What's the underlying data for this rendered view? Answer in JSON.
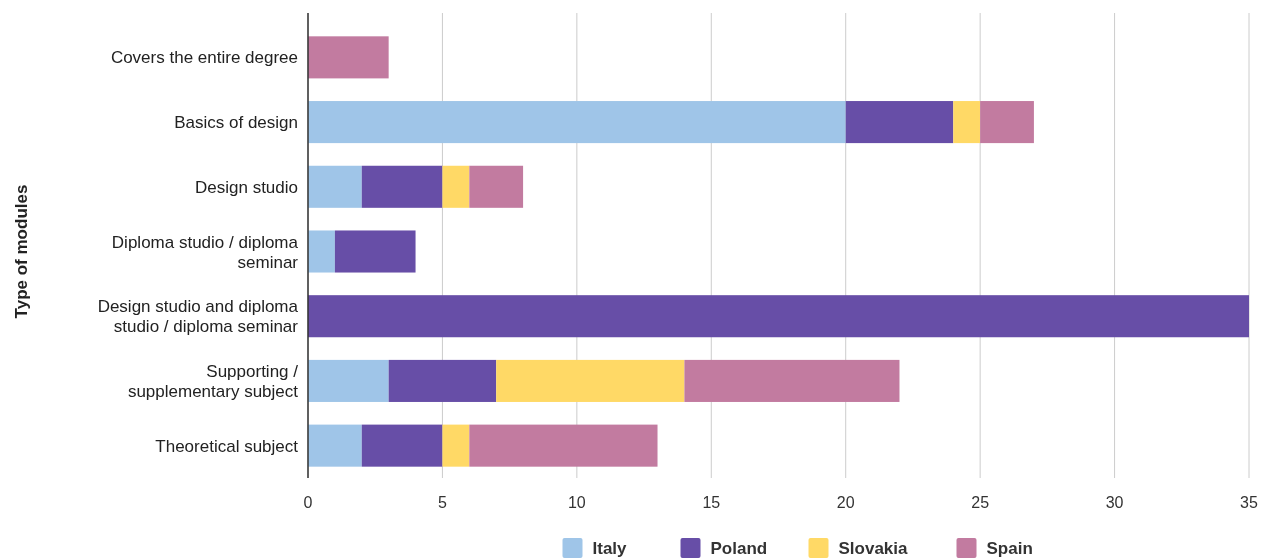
{
  "chart_data": {
    "type": "bar",
    "orientation": "horizontal",
    "stacked": true,
    "ylabel": "Type of modules",
    "categories": [
      "Covers the entire degree",
      "Basics of design",
      "Design studio",
      "Diploma studio / diploma seminar",
      "Design studio and diploma studio / diploma seminar",
      "Supporting / supplementary subject",
      "Theoretical subject"
    ],
    "series": [
      {
        "name": "Italy",
        "color": "#9fc5e8",
        "values": [
          0,
          20,
          2,
          1,
          0,
          3,
          2
        ]
      },
      {
        "name": "Poland",
        "color": "#674ea7",
        "values": [
          0,
          4,
          3,
          3,
          35,
          4,
          3
        ]
      },
      {
        "name": "Slovakia",
        "color": "#ffd966",
        "values": [
          0,
          1,
          1,
          0,
          0,
          7,
          1
        ]
      },
      {
        "name": "Spain",
        "color": "#c27ba0",
        "values": [
          3,
          2,
          2,
          0,
          0,
          8,
          7
        ]
      }
    ],
    "xlim": [
      0,
      35
    ],
    "xticks": [
      0,
      5,
      10,
      15,
      20,
      25,
      30,
      35
    ],
    "grid": "x",
    "legend": "bottom"
  }
}
